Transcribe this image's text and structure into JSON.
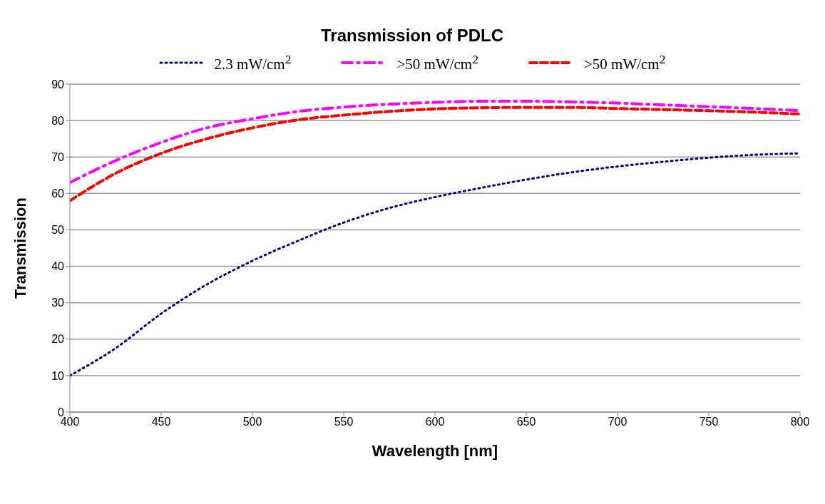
{
  "chart_data": {
    "type": "line",
    "title": "Transmission of PDLC",
    "xlabel": "Wavelength [nm]",
    "ylabel": "Transmission",
    "x": [
      400,
      425,
      450,
      475,
      500,
      525,
      550,
      575,
      600,
      625,
      650,
      675,
      700,
      725,
      750,
      775,
      800
    ],
    "series": [
      {
        "name": "2.3 mW/cm$^{2}$",
        "color": "#000080",
        "line_style": "dotted",
        "values": [
          10,
          17.5,
          27,
          35,
          41.5,
          47,
          52,
          56,
          59,
          61.5,
          63.8,
          65.8,
          67.4,
          68.7,
          69.8,
          70.6,
          71
        ]
      },
      {
        "name": ">50 mW/cm$^{2}$",
        "color": "#ff00ff",
        "line_style": "dashdot",
        "values": [
          63,
          69,
          74,
          78,
          80.5,
          82.5,
          83.7,
          84.5,
          85,
          85.3,
          85.3,
          85.1,
          84.8,
          84.3,
          83.8,
          83.3,
          82.7
        ]
      },
      {
        "name": ">50 mW/cm$^{2}$",
        "color": "#ff0000",
        "line_style": "dashed",
        "values": [
          58,
          65.5,
          71,
          75,
          78,
          80.2,
          81.5,
          82.5,
          83.2,
          83.5,
          83.6,
          83.6,
          83.3,
          83,
          82.7,
          82.3,
          81.8
        ]
      }
    ],
    "xlim": [
      400,
      800
    ],
    "xticks": [
      400,
      450,
      500,
      550,
      600,
      650,
      700,
      750,
      800
    ],
    "ylim": [
      0,
      90
    ],
    "yticks": [
      0,
      10,
      20,
      30,
      40,
      50,
      60,
      70,
      80,
      90
    ],
    "grid": "y",
    "legend": "top",
    "marker": "none"
  }
}
